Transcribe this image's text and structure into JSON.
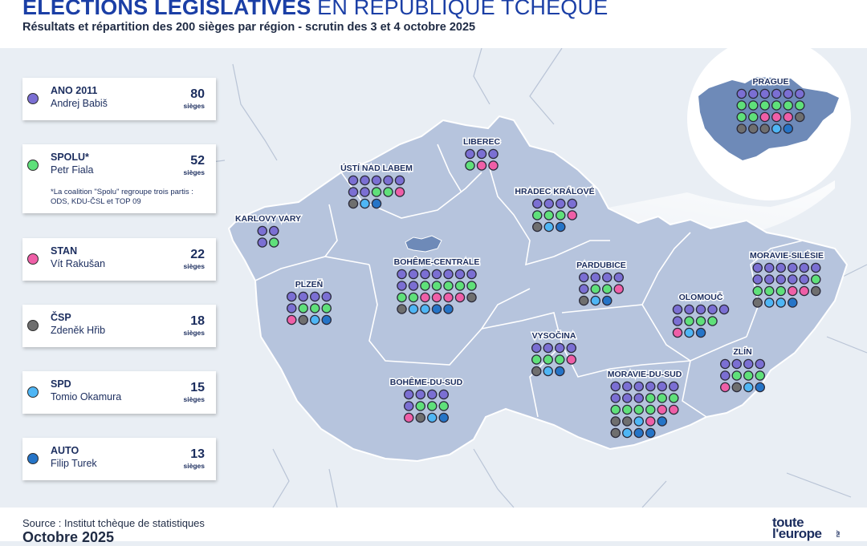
{
  "header": {
    "title_bold": "ELECTIONS LEGISLATIVES",
    "title_rest": " EN RÉPUBLIQUE TCHÈQUE",
    "subtitle": "Résultats et répartition des 200 sièges par région - scrutin des 3 et 4 octobre 2025"
  },
  "legend": [
    {
      "party": "ANO 2011",
      "leader": "Andrej Babiš",
      "seats": "80",
      "unit": "sièges",
      "color": "#7b6fd3"
    },
    {
      "party": "SPOLU*",
      "leader": "Petr Fiala",
      "seats": "52",
      "unit": "sièges",
      "color": "#5fe07a",
      "note": "*La coalition \"Spolu\" regroupe trois partis : ODS, KDU-ČSL et TOP 09"
    },
    {
      "party": "STAN",
      "leader": "Vít Rakušan",
      "seats": "22",
      "unit": "sièges",
      "color": "#ef5fa7"
    },
    {
      "party": "ČSP",
      "leader": "Zdeněk Hřib",
      "seats": "18",
      "unit": "sièges",
      "color": "#6f6f6f"
    },
    {
      "party": "SPD",
      "leader": "Tomio Okamura",
      "seats": "15",
      "unit": "sièges",
      "color": "#4fb6f5"
    },
    {
      "party": "AUTO",
      "leader": "Filip Turek",
      "seats": "13",
      "unit": "sièges",
      "color": "#2574c7"
    }
  ],
  "regions": [
    {
      "name": "PRAGUE",
      "rows": [
        [
          "ANO",
          "ANO",
          "ANO",
          "ANO",
          "ANO",
          "ANO"
        ],
        [
          "SPOLU",
          "SPOLU",
          "SPOLU",
          "SPOLU",
          "SPOLU",
          "SPOLU"
        ],
        [
          "SPOLU",
          "SPOLU",
          "STAN",
          "STAN",
          "STAN",
          "CSP"
        ],
        [
          "CSP",
          "CSP",
          "CSP",
          "SPD",
          "AUTO"
        ]
      ]
    },
    {
      "name": "LIBEREC",
      "rows": [
        [
          "ANO",
          "ANO",
          "ANO"
        ],
        [
          "SPOLU",
          "STAN",
          "STAN"
        ]
      ]
    },
    {
      "name": "ÚSTÍ NAD LABEM",
      "rows": [
        [
          "ANO",
          "ANO",
          "ANO",
          "ANO",
          "ANO"
        ],
        [
          "ANO",
          "ANO",
          "SPOLU",
          "SPOLU",
          "STAN"
        ],
        [
          "CSP",
          "SPD",
          "AUTO"
        ]
      ]
    },
    {
      "name": "HRADEC KRÁLOVÉ",
      "rows": [
        [
          "ANO",
          "ANO",
          "ANO",
          "ANO"
        ],
        [
          "SPOLU",
          "SPOLU",
          "SPOLU",
          "STAN"
        ],
        [
          "CSP",
          "SPD",
          "AUTO"
        ]
      ]
    },
    {
      "name": "KARLOVY VARY",
      "rows": [
        [
          "ANO",
          "ANO"
        ],
        [
          "ANO",
          "SPOLU"
        ]
      ]
    },
    {
      "name": "BOHÊME-CENTRALE",
      "rows": [
        [
          "ANO",
          "ANO",
          "ANO",
          "ANO",
          "ANO",
          "ANO",
          "ANO"
        ],
        [
          "ANO",
          "ANO",
          "SPOLU",
          "SPOLU",
          "SPOLU",
          "SPOLU",
          "SPOLU"
        ],
        [
          "SPOLU",
          "SPOLU",
          "STAN",
          "STAN",
          "STAN",
          "STAN",
          "CSP"
        ],
        [
          "CSP",
          "SPD",
          "SPD",
          "AUTO",
          "AUTO"
        ]
      ]
    },
    {
      "name": "PARDUBICE",
      "rows": [
        [
          "ANO",
          "ANO",
          "ANO",
          "ANO"
        ],
        [
          "ANO",
          "SPOLU",
          "SPOLU",
          "STAN"
        ],
        [
          "CSP",
          "SPD",
          "AUTO"
        ]
      ]
    },
    {
      "name": "MORAVIE-SILÉSIE",
      "rows": [
        [
          "ANO",
          "ANO",
          "ANO",
          "ANO",
          "ANO",
          "ANO"
        ],
        [
          "ANO",
          "ANO",
          "ANO",
          "ANO",
          "ANO",
          "SPOLU"
        ],
        [
          "SPOLU",
          "SPOLU",
          "SPOLU",
          "STAN",
          "STAN",
          "CSP"
        ],
        [
          "CSP",
          "SPD",
          "SPD",
          "AUTO"
        ]
      ]
    },
    {
      "name": "PLZEŇ",
      "rows": [
        [
          "ANO",
          "ANO",
          "ANO",
          "ANO"
        ],
        [
          "ANO",
          "SPOLU",
          "SPOLU",
          "SPOLU"
        ],
        [
          "STAN",
          "CSP",
          "SPD",
          "AUTO"
        ]
      ]
    },
    {
      "name": "OLOMOUČ",
      "rows": [
        [
          "ANO",
          "ANO",
          "ANO",
          "ANO",
          "ANO"
        ],
        [
          "ANO",
          "SPOLU",
          "SPOLU",
          "SPOLU"
        ],
        [
          "STAN",
          "SPD",
          "AUTO"
        ]
      ]
    },
    {
      "name": "VYSOČINA",
      "rows": [
        [
          "ANO",
          "ANO",
          "ANO",
          "ANO"
        ],
        [
          "SPOLU",
          "SPOLU",
          "SPOLU",
          "STAN"
        ],
        [
          "CSP",
          "SPD",
          "AUTO"
        ]
      ]
    },
    {
      "name": "ZLÍN",
      "rows": [
        [
          "ANO",
          "ANO",
          "ANO",
          "ANO"
        ],
        [
          "ANO",
          "SPOLU",
          "SPOLU",
          "SPOLU"
        ],
        [
          "STAN",
          "CSP",
          "SPD",
          "AUTO"
        ]
      ]
    },
    {
      "name": "BOHÊME-DU-SUD",
      "rows": [
        [
          "ANO",
          "ANO",
          "ANO",
          "ANO"
        ],
        [
          "ANO",
          "SPOLU",
          "SPOLU",
          "SPOLU"
        ],
        [
          "STAN",
          "CSP",
          "SPD",
          "AUTO"
        ]
      ]
    },
    {
      "name": "MORAVIE-DU-SUD",
      "rows": [
        [
          "ANO",
          "ANO",
          "ANO",
          "ANO",
          "ANO",
          "ANO"
        ],
        [
          "ANO",
          "ANO",
          "ANO",
          "SPOLU",
          "SPOLU",
          "SPOLU"
        ],
        [
          "SPOLU",
          "SPOLU",
          "SPOLU",
          "SPOLU",
          "STAN",
          "STAN"
        ],
        [
          "CSP",
          "CSP",
          "SPD",
          "STAN",
          "AUTO"
        ],
        [
          "CSP",
          "SPD",
          "AUTO",
          "AUTO"
        ]
      ]
    }
  ],
  "footer": {
    "source": "Source : Institut tchèque de statistiques",
    "date": "Octobre 2025",
    "logo_line1": "toute",
    "logo_line2": "l'europe",
    "logo_eu": ".eu"
  }
}
